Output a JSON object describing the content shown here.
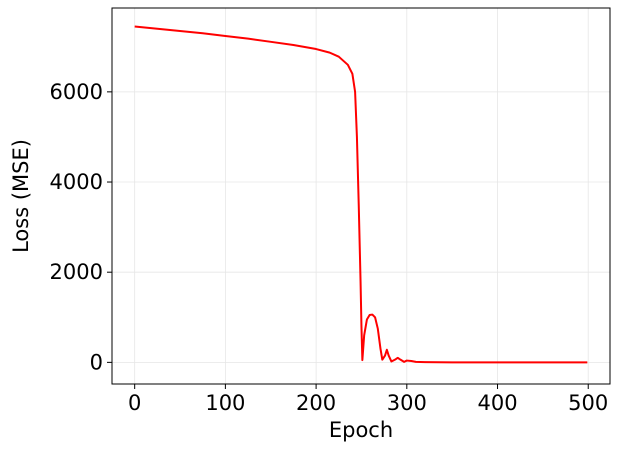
{
  "chart_data": {
    "type": "line",
    "x_label": "Epoch",
    "y_label": "Loss (MSE)",
    "x": [
      0,
      25,
      50,
      75,
      100,
      125,
      150,
      175,
      200,
      215,
      225,
      235,
      240,
      243,
      245,
      247,
      249,
      250,
      251,
      253,
      256,
      259,
      262,
      265,
      268,
      271,
      273,
      276,
      278,
      280,
      283,
      287,
      290,
      293,
      297,
      300,
      305,
      310,
      320,
      350,
      400,
      450,
      499
    ],
    "values": [
      7450,
      7400,
      7350,
      7300,
      7240,
      7180,
      7110,
      7040,
      6950,
      6870,
      6780,
      6600,
      6400,
      6000,
      5000,
      3500,
      1800,
      800,
      50,
      600,
      950,
      1050,
      1060,
      1000,
      750,
      300,
      60,
      150,
      280,
      150,
      20,
      60,
      100,
      60,
      10,
      40,
      30,
      10,
      5,
      0,
      0,
      0,
      0
    ],
    "color": "#ff0000",
    "xlim": [
      -25,
      524
    ],
    "xticks": [
      0,
      100,
      200,
      300,
      400,
      500
    ],
    "ylim": [
      -480,
      7860
    ],
    "yticks": [
      0,
      2000,
      4000,
      6000
    ],
    "grid": true
  }
}
